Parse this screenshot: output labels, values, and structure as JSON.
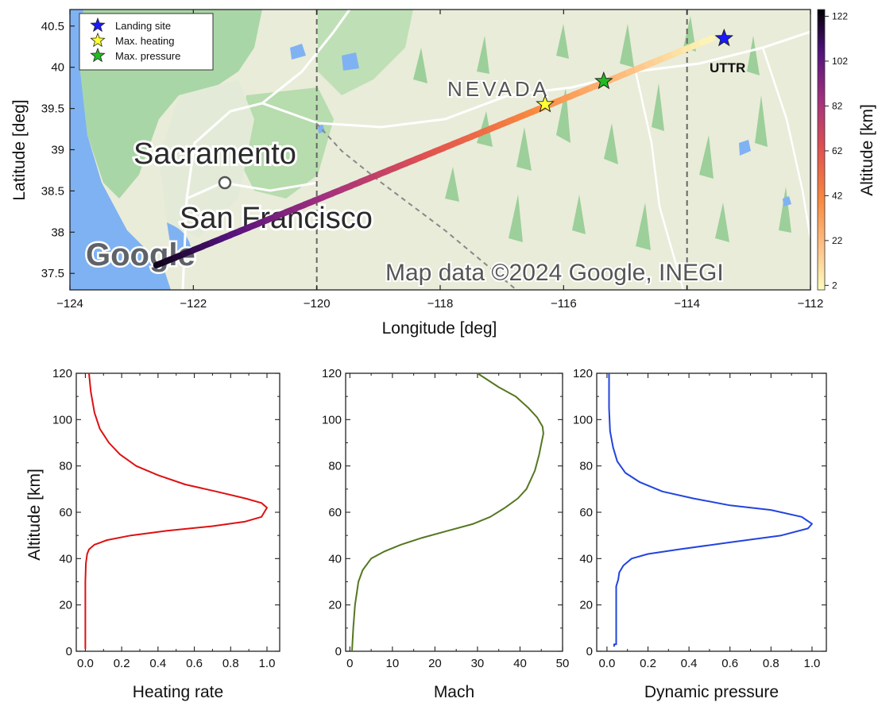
{
  "map_panel": {
    "xlabel": "Longitude [deg]",
    "ylabel": "Latitude [deg]",
    "colorbar_label": "Altitude [km]",
    "map_text": {
      "city1": "Sacramento",
      "city2": "San Francisco",
      "state": "NEVADA",
      "site": "UTTR",
      "logo": "Google",
      "attribution": "Map data ©2024 Google, INEGI"
    },
    "legend": [
      {
        "label": "Landing site",
        "color": "#1a1aff"
      },
      {
        "label": "Max. heating",
        "color": "#ffff33"
      },
      {
        "label": "Max. pressure",
        "color": "#22bb22"
      }
    ]
  },
  "chart_data": [
    {
      "type": "line",
      "title": "",
      "xlabel": "Longitude [deg]",
      "ylabel": "Latitude [deg]",
      "xlim": [
        -124,
        -112
      ],
      "ylim": [
        37.3,
        40.7
      ],
      "xticks": [
        -124,
        -122,
        -120,
        -118,
        -116,
        -114,
        -112
      ],
      "yticks": [
        37.5,
        38,
        38.5,
        39,
        39.5,
        40,
        40.5
      ],
      "colorbar": {
        "label": "Altitude [km]",
        "ticks": [
          2,
          22,
          42,
          62,
          82,
          102,
          122
        ],
        "range": [
          0,
          125
        ]
      },
      "track": {
        "start": [
          -122.6,
          37.6
        ],
        "end": [
          -113.6,
          40.35
        ],
        "alt_start": 122,
        "alt_end": 2
      },
      "markers": [
        {
          "name": "Landing site",
          "x": -113.4,
          "y": 40.35
        },
        {
          "name": "Max. heating",
          "x": -116.3,
          "y": 39.55
        },
        {
          "name": "Max. pressure",
          "x": -115.35,
          "y": 39.83
        }
      ],
      "reference_lines_x": [
        -120,
        -114
      ]
    },
    {
      "type": "line",
      "xlabel": "Heating rate",
      "ylabel": "Altitude [km]",
      "xlim": [
        -0.05,
        1.07
      ],
      "ylim": [
        0,
        120
      ],
      "xticks": [
        0.0,
        0.2,
        0.4,
        0.6,
        0.8,
        1.0
      ],
      "xtick_labels": [
        "0.0",
        "0.2",
        "0.4",
        "0.6",
        "0.8",
        "1.0"
      ],
      "yticks": [
        0,
        20,
        40,
        60,
        80,
        100,
        120
      ],
      "color": "#dd1111",
      "x": [
        0.0,
        0.0,
        0.003,
        0.01,
        0.02,
        0.05,
        0.12,
        0.25,
        0.45,
        0.7,
        0.88,
        0.97,
        1.0,
        0.97,
        0.88,
        0.72,
        0.55,
        0.4,
        0.28,
        0.19,
        0.13,
        0.08,
        0.05,
        0.03,
        0.02
      ],
      "y": [
        1,
        30,
        38,
        42,
        44,
        46,
        48,
        50,
        52,
        54,
        56,
        58,
        62,
        64,
        66,
        69,
        72,
        76,
        80,
        85,
        90,
        96,
        103,
        112,
        120
      ]
    },
    {
      "type": "line",
      "xlabel": "Mach",
      "xlim": [
        -1,
        50
      ],
      "ylim": [
        0,
        120
      ],
      "xticks": [
        0,
        10,
        20,
        30,
        40,
        50
      ],
      "yticks": [
        0,
        20,
        40,
        60,
        80,
        100,
        120
      ],
      "color": "#557722",
      "x": [
        0.5,
        0.8,
        1.2,
        2,
        3,
        5,
        8,
        12,
        17,
        23,
        29,
        33,
        36.5,
        39.5,
        41.5,
        42.5,
        43.5,
        44.5,
        45.5,
        45.3,
        44,
        42,
        39,
        35,
        30
      ],
      "y": [
        0,
        10,
        20,
        30,
        35,
        40,
        43,
        46,
        49,
        52,
        55,
        58,
        62,
        66,
        70,
        74,
        78,
        85,
        94,
        97,
        101,
        105,
        110,
        114,
        120
      ]
    },
    {
      "type": "line",
      "xlabel": "Dynamic pressure",
      "xlim": [
        -0.05,
        1.07
      ],
      "ylim": [
        0,
        120
      ],
      "xticks": [
        0.0,
        0.2,
        0.4,
        0.6,
        0.8,
        1.0
      ],
      "xtick_labels": [
        "0.0",
        "0.2",
        "0.4",
        "0.6",
        "0.8",
        "1.0"
      ],
      "yticks": [
        0,
        20,
        40,
        60,
        80,
        100,
        120
      ],
      "color": "#2244dd",
      "x": [
        0.035,
        0.035,
        0.045,
        0.045,
        0.055,
        0.06,
        0.08,
        0.12,
        0.2,
        0.35,
        0.6,
        0.85,
        0.98,
        1.0,
        0.95,
        0.8,
        0.6,
        0.42,
        0.27,
        0.16,
        0.09,
        0.05,
        0.03,
        0.015,
        0.01,
        0.01
      ],
      "y": [
        2,
        3,
        3,
        28,
        31,
        34,
        37,
        40,
        42,
        44,
        47,
        50,
        53,
        55,
        58,
        61,
        63,
        66,
        69,
        73,
        77,
        82,
        88,
        95,
        105,
        120
      ]
    }
  ]
}
